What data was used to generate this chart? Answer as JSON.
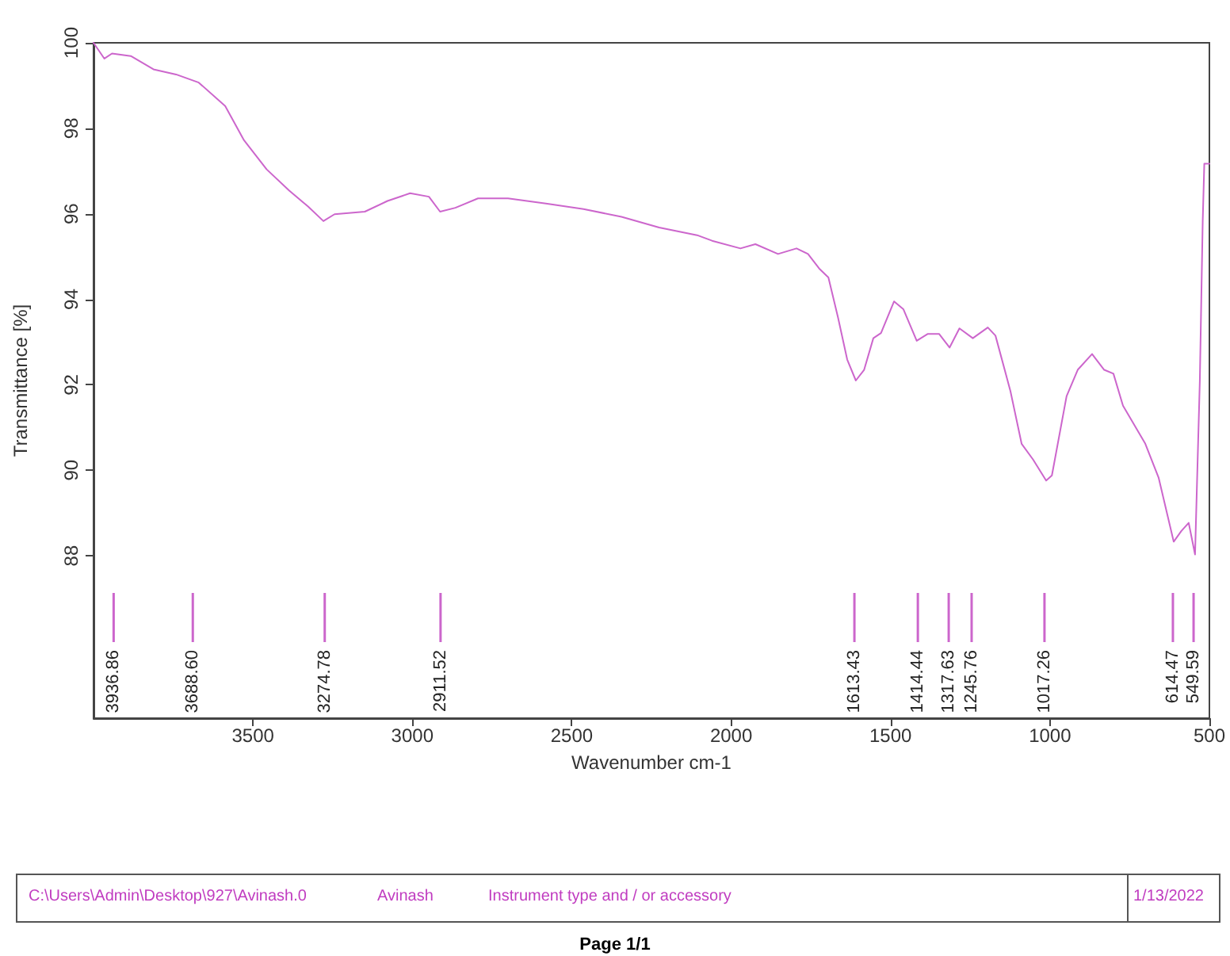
{
  "chart_data": {
    "type": "line",
    "xlabel": "Wavenumber cm-1",
    "ylabel": "Transmittance [%]",
    "xlim": [
      4000,
      500
    ],
    "xticks": [
      3500,
      3000,
      2500,
      2000,
      1500,
      1000,
      500
    ],
    "ylim": [
      84.2,
      100
    ],
    "yticks": [
      88,
      90,
      92,
      94,
      96,
      98,
      100
    ],
    "grid": false,
    "marker": "none",
    "line_style": "solid",
    "ref_lines": [
      {
        "axis": "x",
        "value": 3936.86,
        "label": "3936.86",
        "color": "#cc66cc"
      },
      {
        "axis": "x",
        "value": 3688.6,
        "label": "3688.60",
        "color": "#cc66cc"
      },
      {
        "axis": "x",
        "value": 3274.78,
        "label": "3274.78",
        "color": "#cc66cc"
      },
      {
        "axis": "x",
        "value": 2911.52,
        "label": "2911.52",
        "color": "#cc66cc"
      },
      {
        "axis": "x",
        "value": 1613.43,
        "label": "1613.43",
        "color": "#cc66cc"
      },
      {
        "axis": "x",
        "value": 1414.44,
        "label": "1414.44",
        "color": "#cc66cc"
      },
      {
        "axis": "x",
        "value": 1317.63,
        "label": "1317.63",
        "color": "#cc66cc"
      },
      {
        "axis": "x",
        "value": 1245.76,
        "label": "1245.76",
        "color": "#cc66cc"
      },
      {
        "axis": "x",
        "value": 1017.26,
        "label": "1017.26",
        "color": "#cc66cc"
      },
      {
        "axis": "x",
        "value": 614.47,
        "label": "614.47",
        "color": "#cc66cc"
      },
      {
        "axis": "x",
        "value": 549.59,
        "label": "549.59",
        "color": "#cc66cc"
      }
    ],
    "series": [
      {
        "color": "#cc66cc",
        "x": [
          4000,
          3966,
          3942,
          3883,
          3812,
          3741,
          3670,
          3587,
          3528,
          3457,
          3386,
          3327,
          3279,
          3244,
          3149,
          3078,
          3007,
          2948,
          2913,
          2865,
          2794,
          2700,
          2581,
          2463,
          2344,
          2226,
          2107,
          2060,
          1971,
          1924,
          1853,
          1795,
          1759,
          1724,
          1695,
          1665,
          1636,
          1609,
          1583,
          1554,
          1530,
          1489,
          1460,
          1418,
          1383,
          1348,
          1315,
          1284,
          1242,
          1195,
          1171,
          1124,
          1089,
          1053,
          1012,
          994,
          948,
          913,
          868,
          830,
          801,
          771,
          701,
          659,
          612,
          588,
          565,
          545,
          530,
          521,
          516,
          500
        ],
        "values": [
          100,
          99.63,
          99.75,
          99.69,
          99.38,
          99.26,
          99.07,
          98.52,
          97.72,
          97.04,
          96.54,
          96.17,
          95.83,
          95.99,
          96.05,
          96.3,
          96.48,
          96.4,
          96.05,
          96.14,
          96.36,
          96.36,
          96.24,
          96.11,
          95.93,
          95.68,
          95.5,
          95.37,
          95.19,
          95.29,
          95.06,
          95.19,
          95.06,
          94.72,
          94.51,
          93.58,
          92.59,
          92.1,
          92.35,
          93.09,
          93.21,
          93.95,
          93.77,
          93.03,
          93.19,
          93.19,
          92.87,
          93.32,
          93.09,
          93.34,
          93.15,
          91.85,
          90.62,
          90.25,
          89.76,
          89.88,
          91.73,
          92.35,
          92.72,
          92.35,
          92.26,
          91.51,
          90.62,
          89.82,
          88.33,
          88.58,
          88.77,
          88.03,
          92.1,
          95.81,
          97.17,
          97.17
        ]
      }
    ],
    "annotations": [
      "C:\\Users\\Admin\\Desktop\\927\\Avinash.0",
      "Avinash",
      "Instrument type and / or accessory",
      "1/13/2022",
      "Page 1/1"
    ]
  }
}
